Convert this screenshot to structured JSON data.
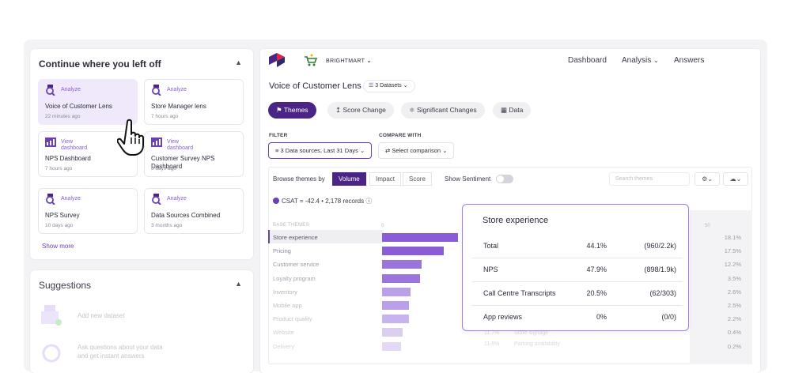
{
  "continue_panel": {
    "title": "Continue where you left off",
    "show_more": "Show more",
    "tiles": [
      {
        "tag": "Analyze",
        "name": "Voice of Customer Lens",
        "time": "22 minutes ago",
        "icon": "analyze-icon"
      },
      {
        "tag": "Analyze",
        "name": "Store Manager lens",
        "time": "7 hours ago",
        "icon": "analyze-icon"
      },
      {
        "tag": "View dashboard",
        "name": "NPS Dashboard",
        "time": "7 hours ago",
        "icon": "dashboard-icon"
      },
      {
        "tag": "View dashboard",
        "name": "Customer Survey NPS Dashboard",
        "time": "8 days ago",
        "icon": "dashboard-icon"
      },
      {
        "tag": "Analyze",
        "name": "NPS Survey",
        "time": "10 days ago",
        "icon": "analyze-icon"
      },
      {
        "tag": "Analyze",
        "name": "Data Sources Combined",
        "time": "3 months ago",
        "icon": "analyze-icon"
      }
    ]
  },
  "suggestions": {
    "title": "Suggestions",
    "items": [
      "Add new dataset",
      "Ask questions about your data",
      "and get instant answers"
    ]
  },
  "header": {
    "brand": "BRIGHTMART",
    "nav": [
      "Dashboard",
      "Analysis",
      "Answers"
    ]
  },
  "lens": {
    "title": "Voice of Customer Lens",
    "datasets": "3 Datasets"
  },
  "tabs": [
    "Themes",
    "Score Change",
    "Significant Changes",
    "Data"
  ],
  "filter": {
    "label": "FILTER",
    "value": "3 Data sources, Last 31 Days",
    "compare_label": "COMPARE WITH",
    "compare_value": "Select comparison"
  },
  "toolbar": {
    "browse_label": "Browse themes by",
    "modes": [
      "Volume",
      "Impact",
      "Score"
    ],
    "sentiment_label": "Show Sentiment",
    "search_placeholder": "Search themes"
  },
  "summary": "CSAT = -42.4 • 2,178 records",
  "chart_data": {
    "type": "bar",
    "header": "BASE THEMES",
    "axis_ticks": [
      "0",
      "50"
    ],
    "categories": [
      "Store experience",
      "Pricing",
      "Customer service",
      "Loyalty program",
      "Inventory",
      "Mobile app",
      "Product quality",
      "Website",
      "Delivery"
    ],
    "values": [
      18.1,
      17.5,
      12.2,
      3.5,
      2.6,
      2.5,
      2.2,
      0.4,
      0.2
    ],
    "labels": [
      "18.1%",
      "17.5%",
      "12.2%",
      "3.5%",
      "2.6%",
      "2.5%",
      "2.2%",
      "0.4%",
      "0.2%"
    ],
    "bar_lengths": [
      96,
      78,
      50,
      48,
      36,
      34,
      34,
      26,
      24
    ],
    "ghost_labels": [
      "11.7%",
      "Store signage",
      "11.6%",
      "Parking availability"
    ]
  },
  "tooltip": {
    "title": "Store experience",
    "rows": [
      {
        "name": "Total",
        "pct": "44.1%",
        "count": "(960/2.2k)"
      },
      {
        "name": "NPS",
        "pct": "47.9%",
        "count": "(898/1.9k)"
      },
      {
        "name": "Call Centre Transcripts",
        "pct": "20.5%",
        "count": "(62/303)"
      },
      {
        "name": "App reviews",
        "pct": "0%",
        "count": "(0/0)"
      }
    ]
  },
  "colors": {
    "accent": "#4a2585",
    "bar": "#8a5cd6",
    "tile_active": "#efe9fb"
  }
}
